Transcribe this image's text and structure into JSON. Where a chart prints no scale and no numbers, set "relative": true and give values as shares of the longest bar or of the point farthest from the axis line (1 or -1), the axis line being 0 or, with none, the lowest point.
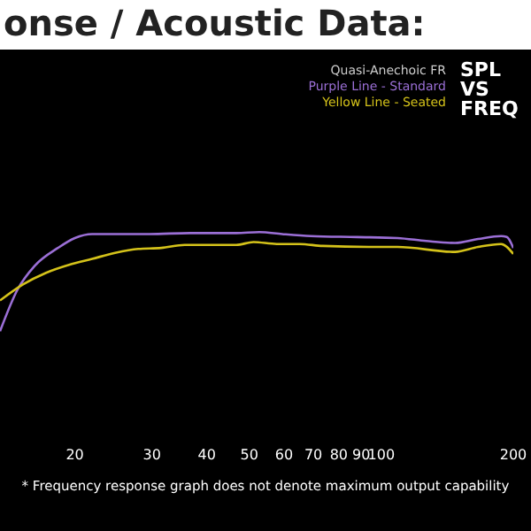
{
  "chart_data": {
    "type": "line",
    "title": "onse / Acoustic Data:",
    "subtitle": "SPL VS FREQ",
    "legend_title": "Quasi-Anechoic FR",
    "legend": "top right",
    "relative": true,
    "log": "x",
    "grid": false,
    "tick_labels": "x",
    "xlim": [
      13.5,
      200
    ],
    "xticks": [
      20,
      30,
      40,
      50,
      60,
      70,
      80,
      90,
      100,
      200
    ],
    "annotations": [
      "* Frequency response graph does not denote maximum output capability"
    ],
    "series": [
      {
        "name": "Purple Line - Standard",
        "color": "#9b6fd6",
        "x": [
          13.5,
          14.8,
          16.2,
          18.3,
          20,
          21.9,
          29.6,
          36.6,
          46.7,
          52.7,
          59.4,
          69.1,
          88.1,
          108.8,
          126.6,
          147.3,
          166.2,
          187.6,
          193.3,
          200
        ],
        "values": [
          0,
          0.42,
          0.66,
          0.84,
          0.94,
          0.98,
          0.98,
          0.99,
          0.99,
          1,
          0.98,
          0.96,
          0.95,
          0.94,
          0.91,
          0.89,
          0.93,
          0.96,
          0.95,
          0.84
        ]
      },
      {
        "name": "Yellow Line - Seated",
        "color": "#d4c21a",
        "x": [
          13.5,
          15.2,
          17.2,
          19.4,
          21.9,
          24.7,
          27.9,
          31.5,
          35.6,
          46.7,
          51.1,
          57.7,
          65.1,
          73.5,
          93.5,
          108.8,
          147.3,
          166.2,
          187.6,
          200
        ],
        "values": [
          0.31,
          0.47,
          0.59,
          0.67,
          0.73,
          0.79,
          0.83,
          0.84,
          0.87,
          0.87,
          0.9,
          0.88,
          0.88,
          0.86,
          0.85,
          0.85,
          0.8,
          0.85,
          0.88,
          0.78
        ]
      }
    ]
  }
}
